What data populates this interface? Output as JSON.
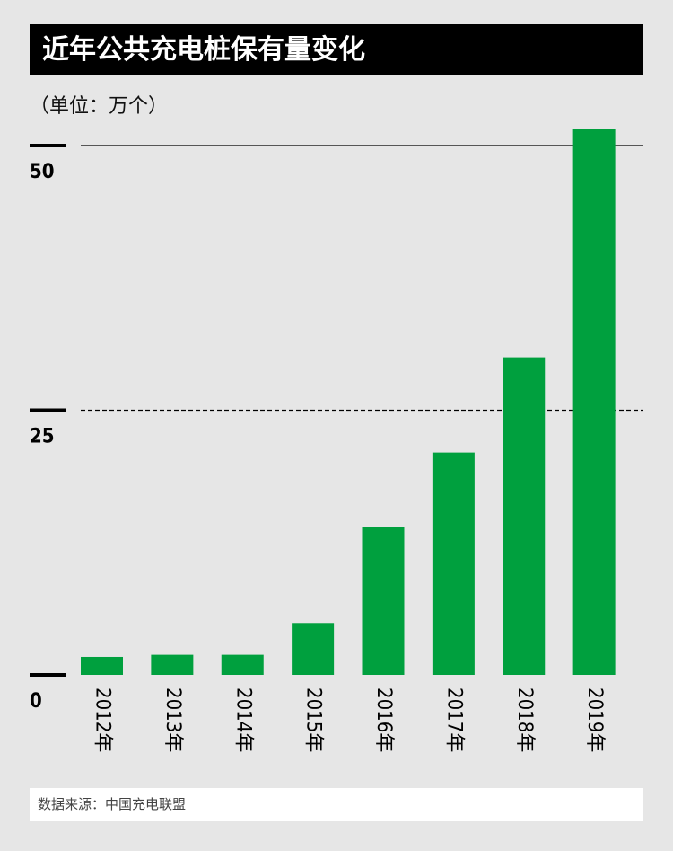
{
  "header": {
    "title": "近年公共充电桩保有量变化",
    "unit": "（单位：万个）"
  },
  "footer": {
    "source": "数据来源：中国充电联盟"
  },
  "colors": {
    "bar": "#00a03e",
    "background": "#e6e6e6",
    "title_bg": "#000000",
    "axis": "#000000"
  },
  "chart_data": {
    "type": "bar",
    "title": "近年公共充电桩保有量变化",
    "ylabel": "（单位：万个）",
    "xlabel": "",
    "categories": [
      "2012年",
      "2013年",
      "2014年",
      "2015年",
      "2016年",
      "2017年",
      "2018年",
      "2019年"
    ],
    "values": [
      1.7,
      1.9,
      1.9,
      4.9,
      14.0,
      21.0,
      30.0,
      51.6
    ],
    "ylim": [
      0,
      50
    ],
    "yticks": [
      0,
      25,
      50
    ],
    "grid": true,
    "grid_styles": {
      "25": "dashed",
      "50": "solid"
    },
    "legend": "none"
  }
}
